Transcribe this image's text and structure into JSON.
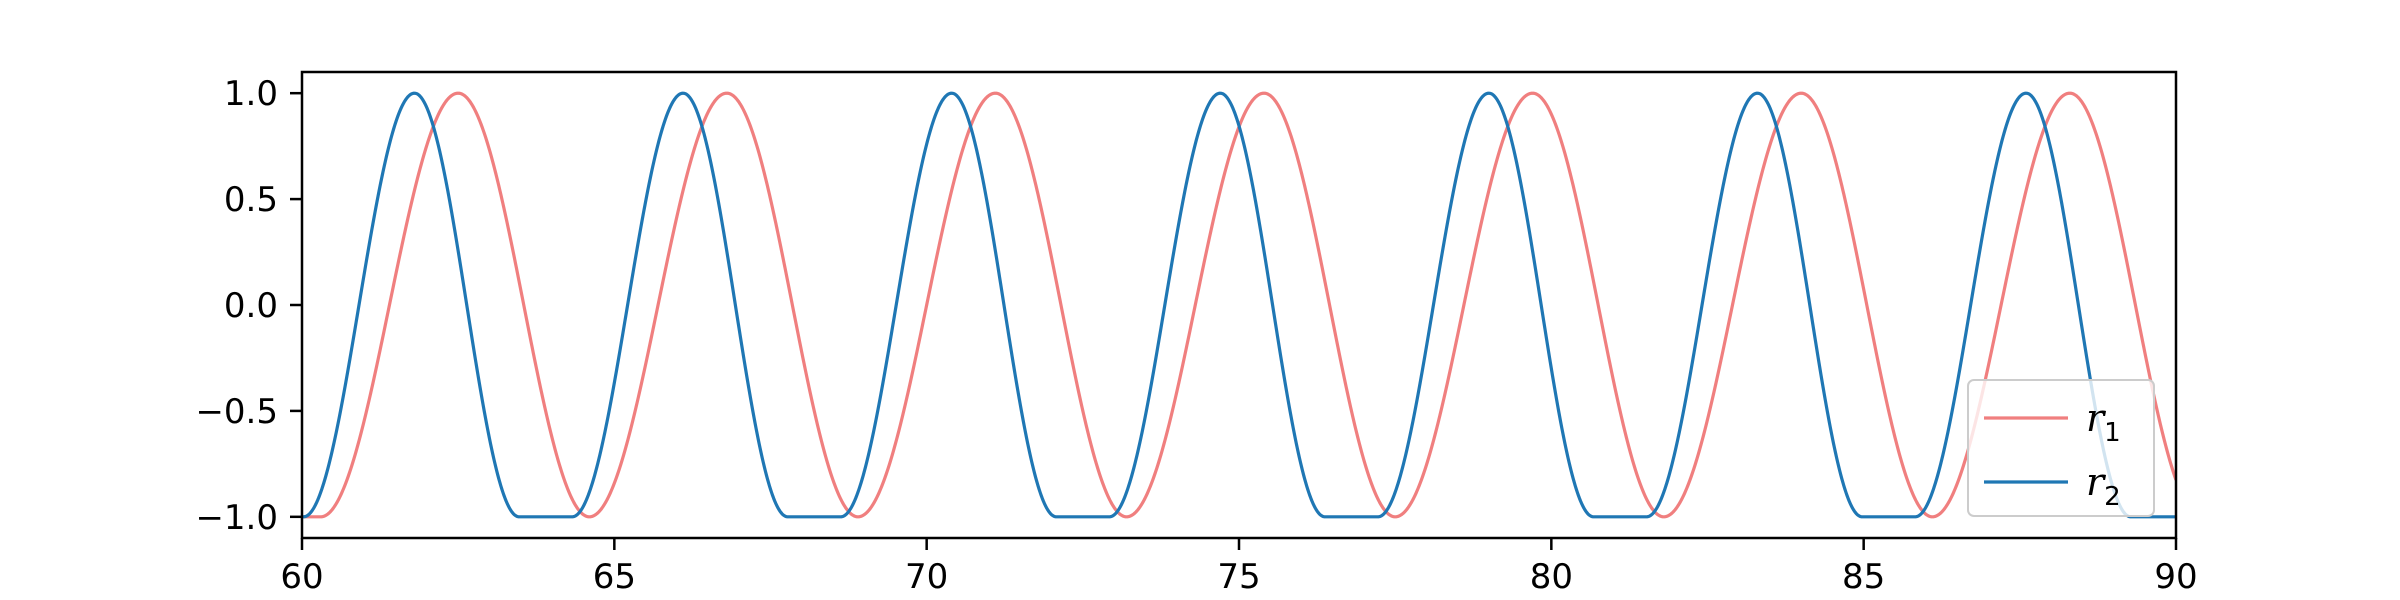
{
  "chart_data": {
    "type": "line",
    "title": "",
    "xlabel": "",
    "ylabel": "",
    "xlim": [
      60,
      90
    ],
    "ylim": [
      -1.1,
      1.1
    ],
    "xticks": [
      60,
      65,
      70,
      75,
      80,
      85,
      90
    ],
    "yticks": [
      -1.0,
      -0.5,
      0.0,
      0.5,
      1.0
    ],
    "xtick_labels": [
      "60",
      "65",
      "70",
      "75",
      "80",
      "85",
      "90"
    ],
    "ytick_labels": [
      "−1.0",
      "−0.5",
      "0.0",
      "0.5",
      "1.0"
    ],
    "grid": false,
    "legend_position": "bottom-right",
    "series": [
      {
        "name": "r",
        "subscript": "1",
        "color": "#f07f7f",
        "peaks_x": [
          62.5,
          66.8,
          71.1,
          75.4,
          79.7,
          84.0,
          88.3
        ],
        "troughs_x": [
          60.3,
          64.6,
          68.9,
          73.2,
          77.5,
          81.8,
          86.1,
          90.4
        ],
        "trough_flat_width": 0
      },
      {
        "name": "r",
        "subscript": "2",
        "color": "#1f77b4",
        "peaks_x": [
          61.8,
          66.1,
          70.4,
          74.7,
          79.0,
          83.3,
          87.6
        ],
        "troughs_x": [
          59.6,
          63.9,
          68.2,
          72.5,
          76.8,
          81.1,
          85.4,
          89.7
        ],
        "trough_flat_width": 0.85
      }
    ]
  }
}
